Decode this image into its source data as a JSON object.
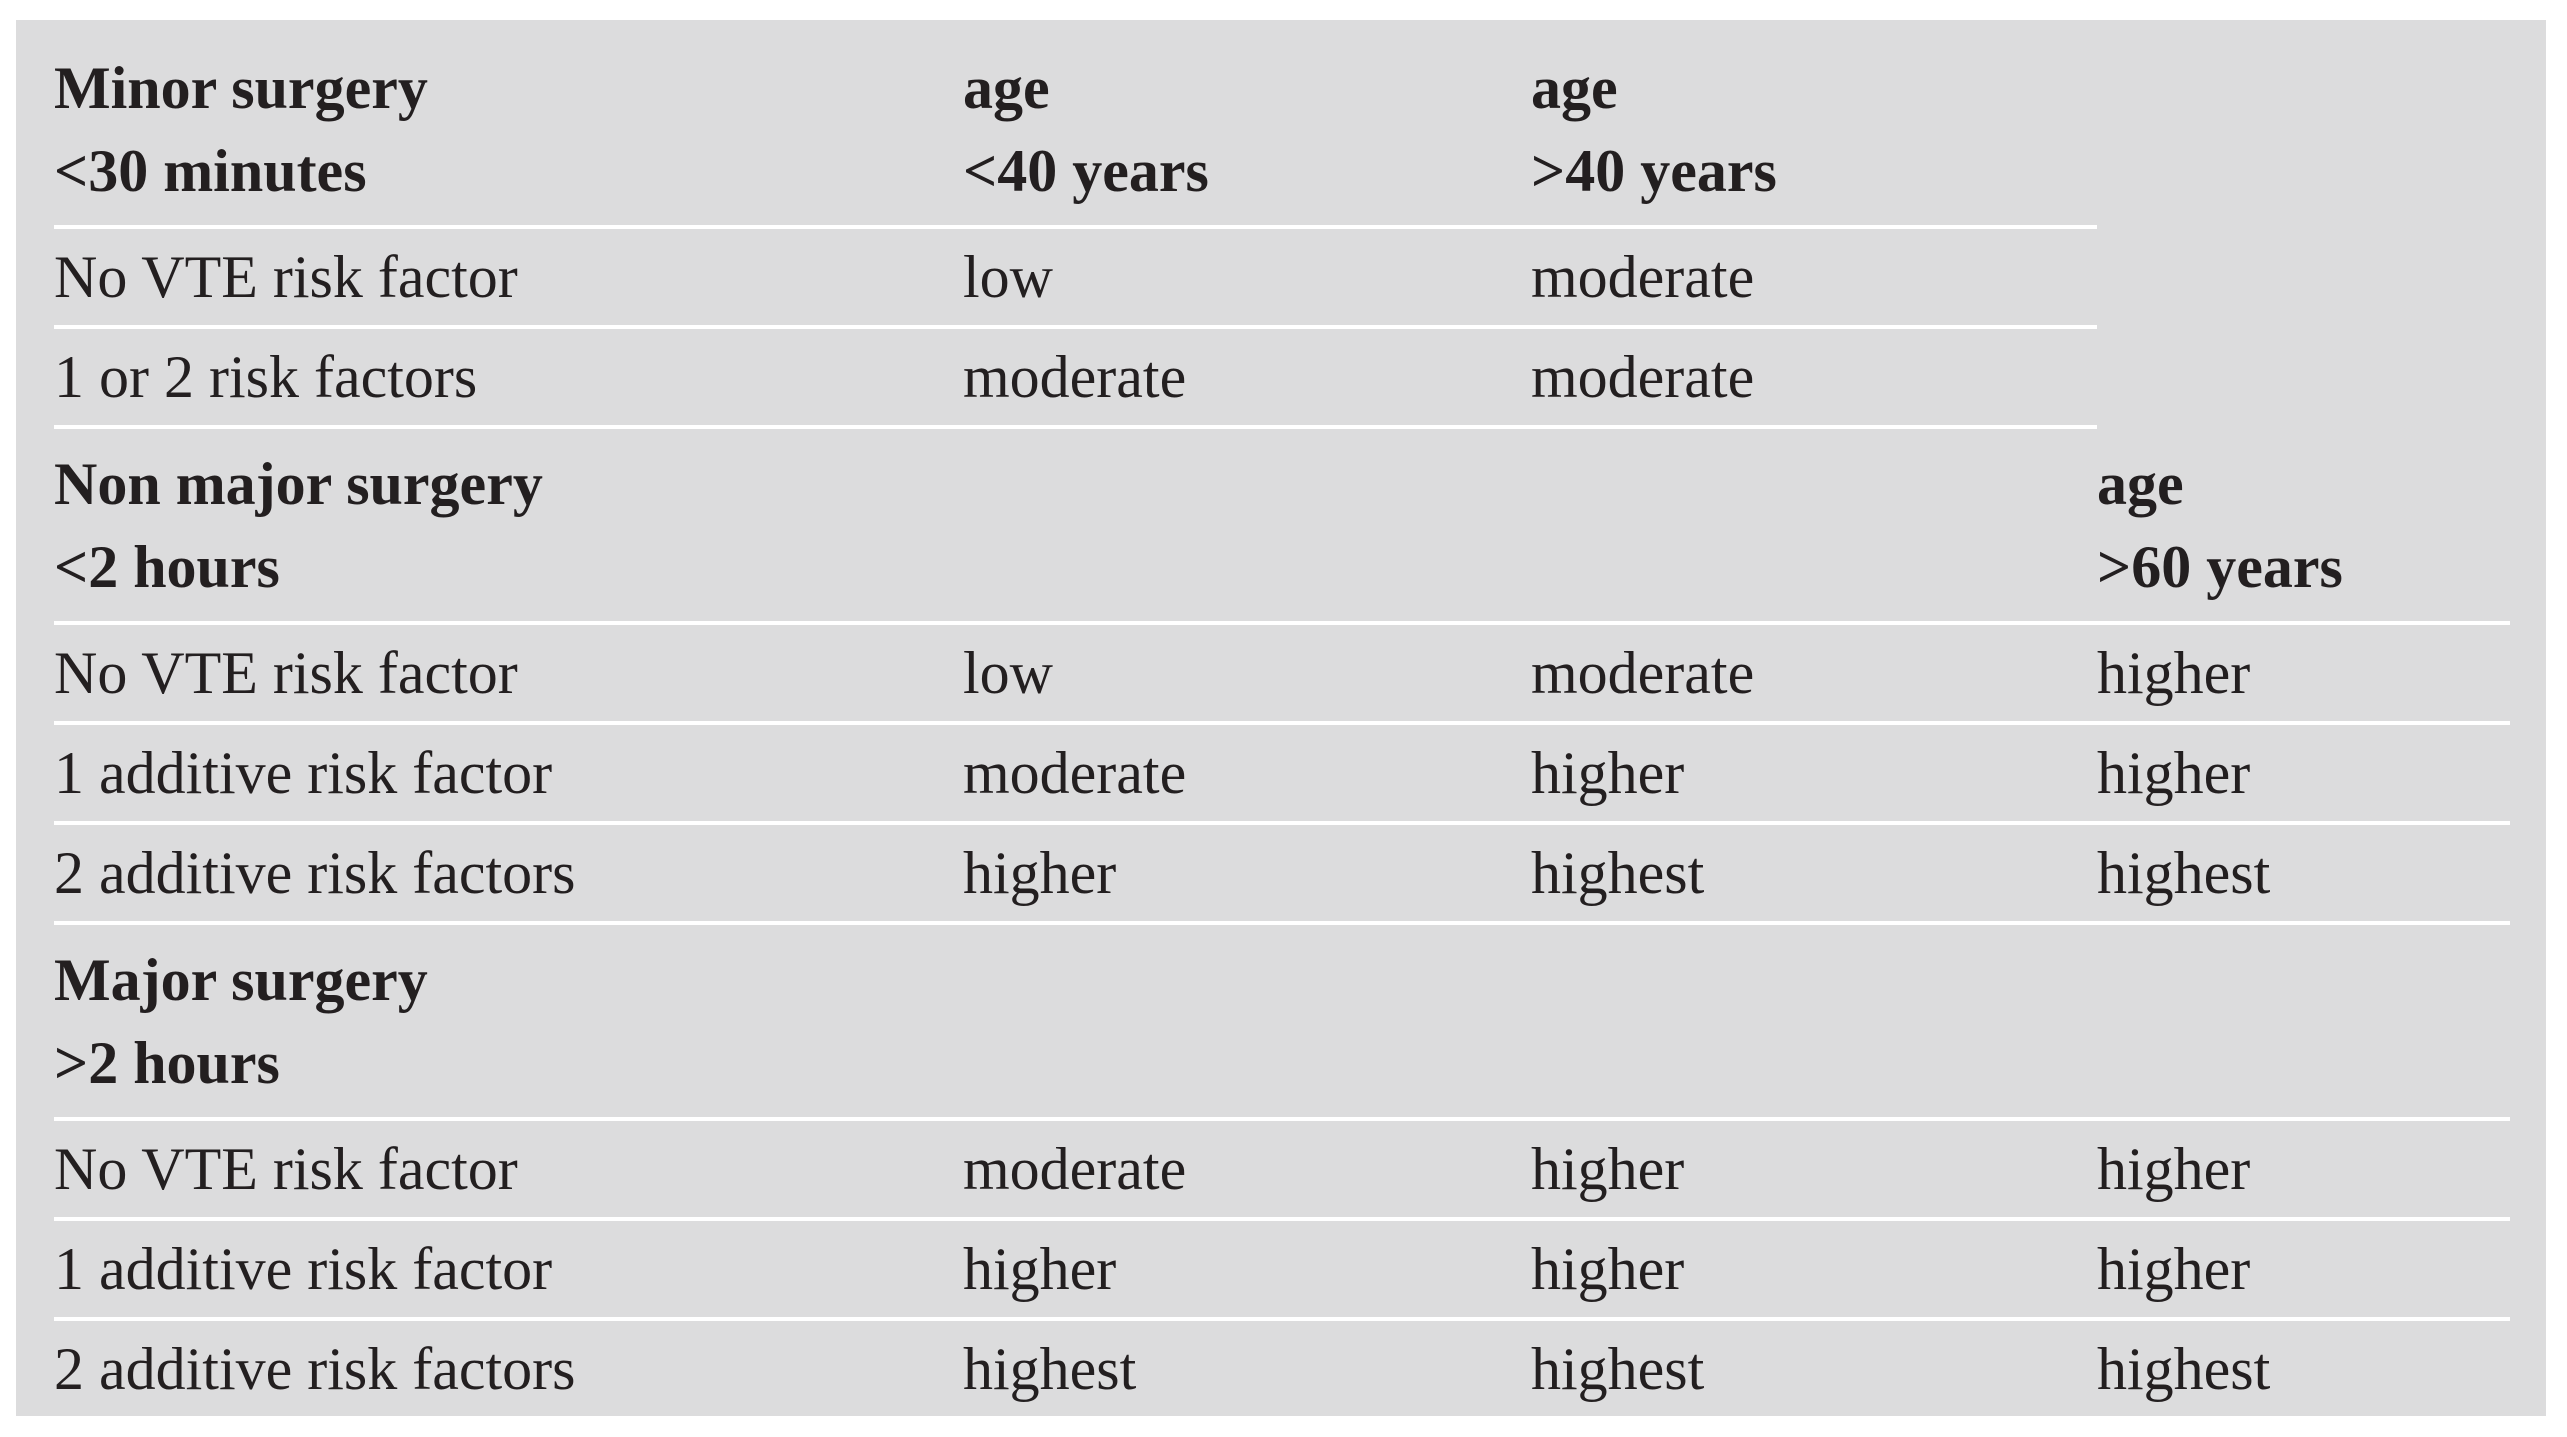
{
  "sections": [
    {
      "title": [
        "Minor surgery",
        "<30 minutes"
      ],
      "age_headers": [
        [
          "age",
          "<40 years"
        ],
        [
          "age",
          ">40 years"
        ]
      ],
      "rows": [
        [
          "No VTE risk factor",
          "low",
          "moderate"
        ],
        [
          "1 or 2 risk factors",
          "moderate",
          "moderate"
        ]
      ]
    },
    {
      "title": [
        "Non major surgery",
        "<2 hours"
      ],
      "extra_age_header": [
        "age",
        ">60 years"
      ],
      "rows": [
        [
          "No VTE risk factor",
          "low",
          "moderate",
          "higher"
        ],
        [
          "1 additive risk factor",
          "moderate",
          "higher",
          "higher"
        ],
        [
          "2 additive risk factors",
          "higher",
          "highest",
          "highest"
        ]
      ]
    },
    {
      "title": [
        "Major surgery",
        ">2 hours"
      ],
      "rows": [
        [
          "No VTE risk factor",
          "moderate",
          "higher",
          "higher"
        ],
        [
          "1 additive risk factor",
          "higher",
          "higher",
          "higher"
        ],
        [
          "2 additive risk factors",
          "highest",
          "highest",
          "highest"
        ]
      ]
    }
  ]
}
